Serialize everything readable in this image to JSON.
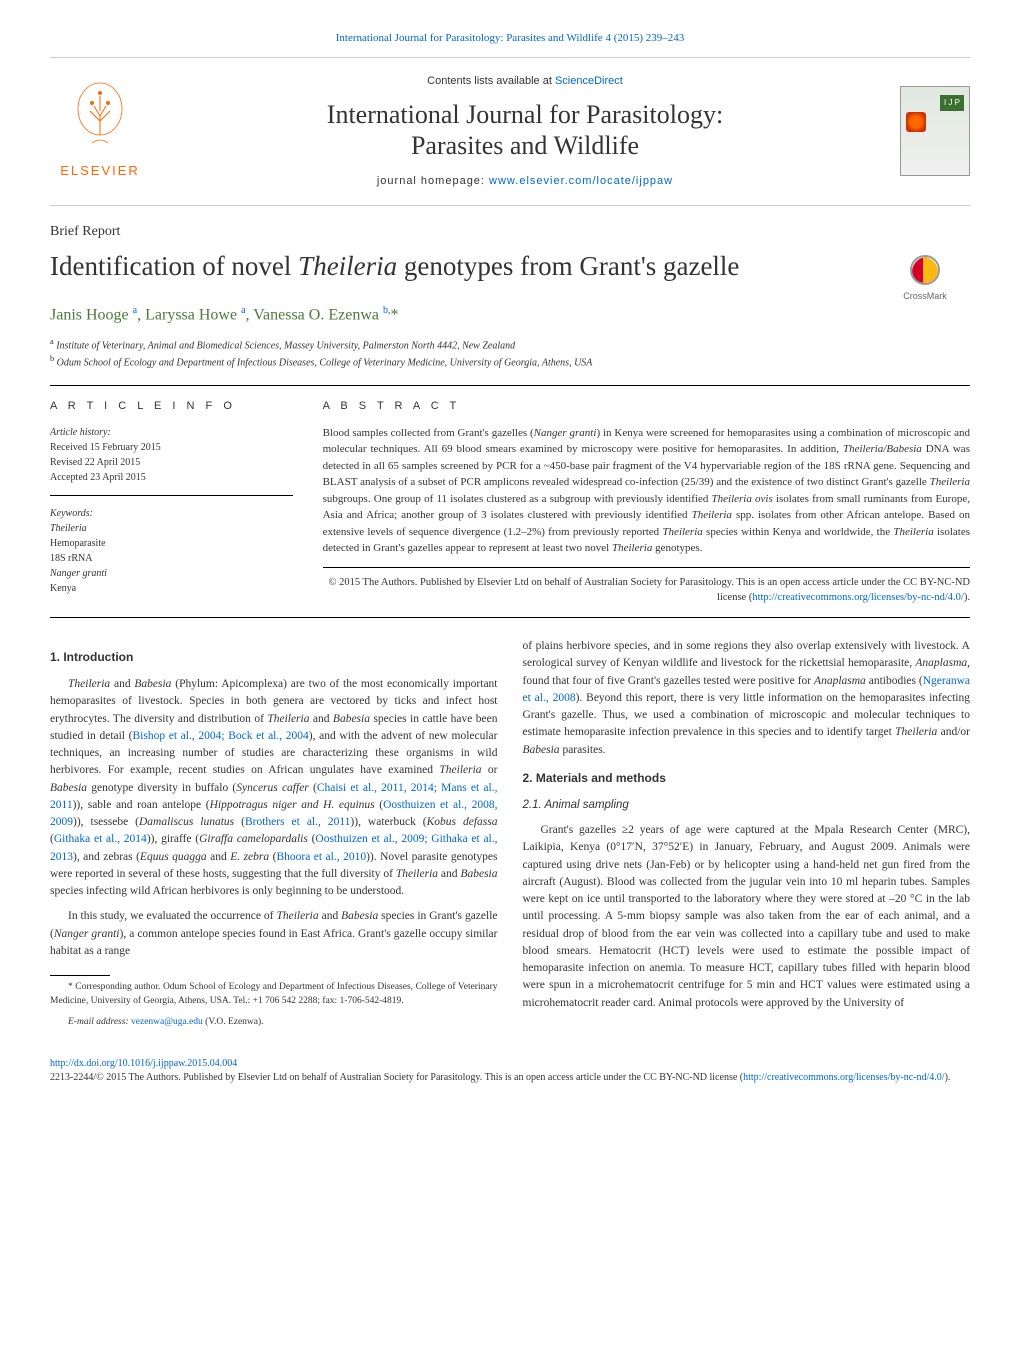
{
  "header": {
    "top_citation": "International Journal for Parasitology: Parasites and Wildlife 4 (2015) 239–243",
    "contents_prefix": "Contents lists available at ",
    "contents_link": "ScienceDirect",
    "journal_title_html": "International Journal for Parasitology:<br>Parasites and Wildlife",
    "homepage_prefix": "journal homepage: ",
    "homepage_url": "www.elsevier.com/locate/ijppaw",
    "publisher": "ELSEVIER",
    "cover_badge": "I J P",
    "crossmark_label": "CrossMark"
  },
  "article": {
    "section_label": "Brief Report",
    "title_html": "Identification of novel <em>Theileria</em> genotypes from Grant's gazelle",
    "authors_html": "Janis Hooge <sup>a</sup>, Laryssa Howe <sup>a</sup>, Vanessa O. Ezenwa <sup>b,</sup>*",
    "affiliations": [
      "Institute of Veterinary, Animal and Biomedical Sciences, Massey University, Palmerston North 4442, New Zealand",
      "Odum School of Ecology and Department of Infectious Diseases, College of Veterinary Medicine, University of Georgia, Athens, USA"
    ]
  },
  "info": {
    "header": "A R T I C L E   I N F O",
    "history_label": "Article history:",
    "received": "Received 15 February 2015",
    "revised": "Revised 22 April 2015",
    "accepted": "Accepted 23 April 2015",
    "keywords_label": "Keywords:",
    "keywords_html": [
      "<em>Theileria</em>",
      "Hemoparasite",
      "18S rRNA",
      "<em>Nanger granti</em>",
      "Kenya"
    ]
  },
  "abstract": {
    "header": "A B S T R A C T",
    "text_html": "Blood samples collected from Grant's gazelles (<em>Nanger granti</em>) in Kenya were screened for hemoparasites using a combination of microscopic and molecular techniques. All 69 blood smears examined by microscopy were positive for hemoparasites. In addition, <em>Theileria/Babesia</em> DNA was detected in all 65 samples screened by PCR for a ~450-base pair fragment of the V4 hypervariable region of the 18S rRNA gene. Sequencing and BLAST analysis of a subset of PCR amplicons revealed widespread co-infection (25/39) and the existence of two distinct Grant's gazelle <em>Theileria</em> subgroups. One group of 11 isolates clustered as a subgroup with previously identified <em>Theileria ovis</em> isolates from small ruminants from Europe, Asia and Africa; another group of 3 isolates clustered with previously identified <em>Theileria</em> spp. isolates from other African antelope. Based on extensive levels of sequence divergence (1.2–2%) from previously reported <em>Theileria</em> species within Kenya and worldwide, the <em>Theileria</em> isolates detected in Grant's gazelles appear to represent at least two novel <em>Theileria</em> genotypes.",
    "copyright_html": "© 2015 The Authors. Published by Elsevier Ltd on behalf of Australian Society for Parasitology. This is an open access article under the CC BY-NC-ND license (<a href=\"#\">http://creativecommons.org/licenses/by-nc-nd/4.0/</a>)."
  },
  "body": {
    "section1_title": "1. Introduction",
    "intro_p1_html": "<em>Theileria</em> and <em>Babesia</em> (Phylum: Apicomplexa) are two of the most economically important hemoparasites of livestock. Species in both genera are vectored by ticks and infect host erythrocytes. The diversity and distribution of <em>Theileria</em> and <em>Babesia</em> species in cattle have been studied in detail (<a href=\"#\">Bishop et al., 2004; Bock et al., 2004</a>), and with the advent of new molecular techniques, an increasing number of studies are characterizing these organisms in wild herbivores. For example, recent studies on African ungulates have examined <em>Theileria</em> or <em>Babesia</em> genotype diversity in buffalo (<em>Syncerus caffer</em> (<a href=\"#\">Chaisi et al., 2011, 2014; Mans et al., 2011</a>)), sable and roan antelope (<em>Hippotragus niger and H. equinus</em> (<a href=\"#\">Oosthuizen et al., 2008, 2009</a>)), tsessebe (<em>Damaliscus lunatus</em> (<a href=\"#\">Brothers et al., 2011</a>)), waterbuck (<em>Kobus defassa</em> (<a href=\"#\">Githaka et al., 2014</a>)), giraffe (<em>Giraffa camelopardalis</em> (<a href=\"#\">Oosthuizen et al., 2009; Githaka et al., 2013</a>), and zebras (<em>Equus quagga</em> and <em>E. zebra</em> (<a href=\"#\">Bhoora et al., 2010</a>)). Novel parasite genotypes were reported in several of these hosts, suggesting that the full diversity of <em>Theileria</em> and <em>Babesia</em> species infecting wild African herbivores is only beginning to be understood.",
    "intro_p2_html": "In this study, we evaluated the occurrence of <em>Theileria</em> and <em>Babesia</em> species in Grant's gazelle (<em>Nanger granti</em>), a common antelope species found in East Africa. Grant's gazelle occupy similar habitat as a range",
    "col2_continue_html": "of plains herbivore species, and in some regions they also overlap extensively with livestock. A serological survey of Kenyan wildlife and livestock for the rickettsial hemoparasite, <em>Anaplasma</em>, found that four of five Grant's gazelles tested were positive for <em>Anaplasma</em> antibodies (<a href=\"#\">Ngeranwa et al., 2008</a>). Beyond this report, there is very little information on the hemoparasites infecting Grant's gazelle. Thus, we used a combination of microscopic and molecular techniques to estimate hemoparasite infection prevalence in this species and to identify target <em>Theileria</em> and/or <em>Babesia</em> parasites.",
    "section2_title": "2. Materials and methods",
    "section21_title": "2.1. Animal sampling",
    "methods_p1_html": "Grant's gazelles ≥2 years of age were captured at the Mpala Research Center (MRC), Laikipia, Kenya (0°17′N, 37°52′E) in January, February, and August 2009. Animals were captured using drive nets (Jan-Feb) or by helicopter using a hand-held net gun fired from the aircraft (August). Blood was collected from the jugular vein into 10 ml heparin tubes. Samples were kept on ice until transported to the laboratory where they were stored at –20 °C in the lab until processing. A 5-mm biopsy sample was also taken from the ear of each animal, and a residual drop of blood from the ear vein was collected into a capillary tube and used to make blood smears. Hematocrit (HCT) levels were used to estimate the possible impact of hemoparasite infection on anemia. To measure HCT, capillary tubes filled with heparin blood were spun in a microhematocrit centrifuge for 5 min and HCT values were estimated using a microhematocrit reader card. Animal protocols were approved by the University of"
  },
  "footnote": {
    "text_html": "* Corresponding author. Odum School of Ecology and Department of Infectious Diseases, College of Veterinary Medicine, University of Georgia, Athens, USA. Tel.: +1 706 542 2288; fax: 1-706-542-4819.",
    "email_label": "E-mail address:",
    "email": "vezenwa@uga.edu",
    "email_suffix": "(V.O. Ezenwa)."
  },
  "footer": {
    "doi": "http://dx.doi.org/10.1016/j.ijppaw.2015.04.004",
    "issn_line_html": "2213-2244/© 2015 The Authors. Published by Elsevier Ltd on behalf of Australian Society for Parasitology. This is an open access article under the CC BY-NC-ND license (<a href=\"#\">http://creativecommons.org/licenses/by-nc-nd/4.0/</a>)."
  },
  "colors": {
    "link": "#0066cc",
    "author_green": "#4a7a3a",
    "elsevier_orange": "#ff6600",
    "crossmark_red": "#d4002a",
    "crossmark_yellow": "#fdb913"
  }
}
